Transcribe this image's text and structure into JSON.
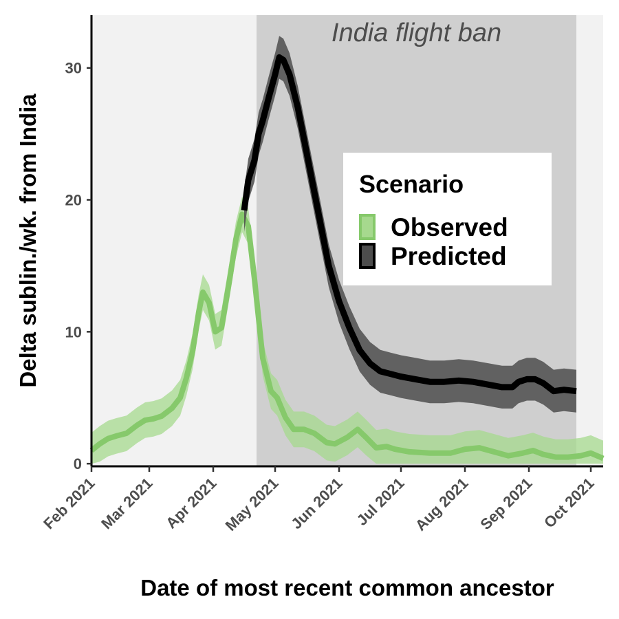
{
  "chart_data": {
    "type": "line",
    "xlabel": "Date of most recent common ancestor",
    "ylabel": "Delta sublin./wk. from India",
    "x_ticks": [
      "Feb 2021",
      "Mar 2021",
      "Apr 2021",
      "May 2021",
      "Jun 2021",
      "Jul 2021",
      "Aug 2021",
      "Sep 2021",
      "Oct 2021"
    ],
    "y_ticks": [
      "0",
      "10",
      "20",
      "30"
    ],
    "xlim": [
      "2021-02-01",
      "2021-10-07"
    ],
    "ylim": [
      -0.2,
      34
    ],
    "grid": false,
    "legend_position": "right",
    "annotation": {
      "text": "India flight ban",
      "start": "2021-04-22",
      "end": "2021-09-24"
    },
    "legend": {
      "title": "Scenario",
      "entries": [
        "Observed",
        "Predicted"
      ]
    },
    "colors": {
      "observed": "#86c96b",
      "observed_band": "#a6d98e",
      "predicted": "#000000",
      "predicted_band": "#4d4d4d",
      "panel": "#f2f2f2",
      "highlight": "#cfcfcf"
    },
    "series": [
      {
        "name": "Observed",
        "points": [
          [
            "2021-02-01",
            1.0
          ],
          [
            "2021-02-05",
            1.5
          ],
          [
            "2021-02-09",
            1.9
          ],
          [
            "2021-02-13",
            2.1
          ],
          [
            "2021-02-18",
            2.3
          ],
          [
            "2021-02-23",
            2.9
          ],
          [
            "2021-02-27",
            3.3
          ],
          [
            "2021-03-03",
            3.4
          ],
          [
            "2021-03-07",
            3.6
          ],
          [
            "2021-03-12",
            4.2
          ],
          [
            "2021-03-16",
            5.0
          ],
          [
            "2021-03-19",
            6.5
          ],
          [
            "2021-03-22",
            8.5
          ],
          [
            "2021-03-25",
            11.5
          ],
          [
            "2021-03-27",
            13.0
          ],
          [
            "2021-03-30",
            12.2
          ],
          [
            "2021-04-02",
            10.0
          ],
          [
            "2021-04-05",
            10.3
          ],
          [
            "2021-04-09",
            14.0
          ],
          [
            "2021-04-12",
            17.0
          ],
          [
            "2021-04-15",
            18.9
          ],
          [
            "2021-04-18",
            18.0
          ],
          [
            "2021-04-21",
            14.0
          ],
          [
            "2021-04-25",
            8.0
          ],
          [
            "2021-04-29",
            5.5
          ],
          [
            "2021-05-02",
            5.0
          ],
          [
            "2021-05-06",
            3.5
          ],
          [
            "2021-05-10",
            2.6
          ],
          [
            "2021-05-15",
            2.6
          ],
          [
            "2021-05-20",
            2.3
          ],
          [
            "2021-05-26",
            1.6
          ],
          [
            "2021-05-30",
            1.5
          ],
          [
            "2021-06-05",
            2.0
          ],
          [
            "2021-06-10",
            2.6
          ],
          [
            "2021-06-14",
            2.0
          ],
          [
            "2021-06-19",
            1.2
          ],
          [
            "2021-06-24",
            1.3
          ],
          [
            "2021-06-28",
            1.1
          ],
          [
            "2021-07-05",
            0.9
          ],
          [
            "2021-07-15",
            0.8
          ],
          [
            "2021-07-25",
            0.8
          ],
          [
            "2021-08-01",
            1.1
          ],
          [
            "2021-08-08",
            1.2
          ],
          [
            "2021-08-15",
            0.9
          ],
          [
            "2021-08-22",
            0.6
          ],
          [
            "2021-08-29",
            0.8
          ],
          [
            "2021-09-03",
            1.0
          ],
          [
            "2021-09-08",
            0.7
          ],
          [
            "2021-09-14",
            0.5
          ],
          [
            "2021-09-20",
            0.5
          ],
          [
            "2021-09-26",
            0.6
          ],
          [
            "2021-10-01",
            0.8
          ],
          [
            "2021-10-07",
            0.4
          ]
        ]
      },
      {
        "name": "Predicted",
        "points": [
          [
            "2021-04-16",
            19.2
          ],
          [
            "2021-04-18",
            21.5
          ],
          [
            "2021-04-21",
            23.0
          ],
          [
            "2021-04-23",
            25.0
          ],
          [
            "2021-04-25",
            26.0
          ],
          [
            "2021-04-28",
            27.8
          ],
          [
            "2021-05-01",
            29.5
          ],
          [
            "2021-05-03",
            30.8
          ],
          [
            "2021-05-05",
            30.6
          ],
          [
            "2021-05-08",
            29.5
          ],
          [
            "2021-05-12",
            27.0
          ],
          [
            "2021-05-17",
            23.0
          ],
          [
            "2021-05-22",
            19.0
          ],
          [
            "2021-05-27",
            15.0
          ],
          [
            "2021-06-01",
            12.3
          ],
          [
            "2021-06-06",
            10.3
          ],
          [
            "2021-06-11",
            8.6
          ],
          [
            "2021-06-16",
            7.6
          ],
          [
            "2021-06-21",
            7.0
          ],
          [
            "2021-06-26",
            6.8
          ],
          [
            "2021-07-01",
            6.6
          ],
          [
            "2021-07-08",
            6.4
          ],
          [
            "2021-07-15",
            6.2
          ],
          [
            "2021-07-22",
            6.2
          ],
          [
            "2021-07-29",
            6.3
          ],
          [
            "2021-08-05",
            6.2
          ],
          [
            "2021-08-12",
            6.0
          ],
          [
            "2021-08-19",
            5.8
          ],
          [
            "2021-08-24",
            5.8
          ],
          [
            "2021-08-27",
            6.2
          ],
          [
            "2021-08-31",
            6.4
          ],
          [
            "2021-09-04",
            6.4
          ],
          [
            "2021-09-08",
            6.1
          ],
          [
            "2021-09-13",
            5.5
          ],
          [
            "2021-09-18",
            5.6
          ],
          [
            "2021-09-24",
            5.5
          ]
        ]
      }
    ]
  }
}
